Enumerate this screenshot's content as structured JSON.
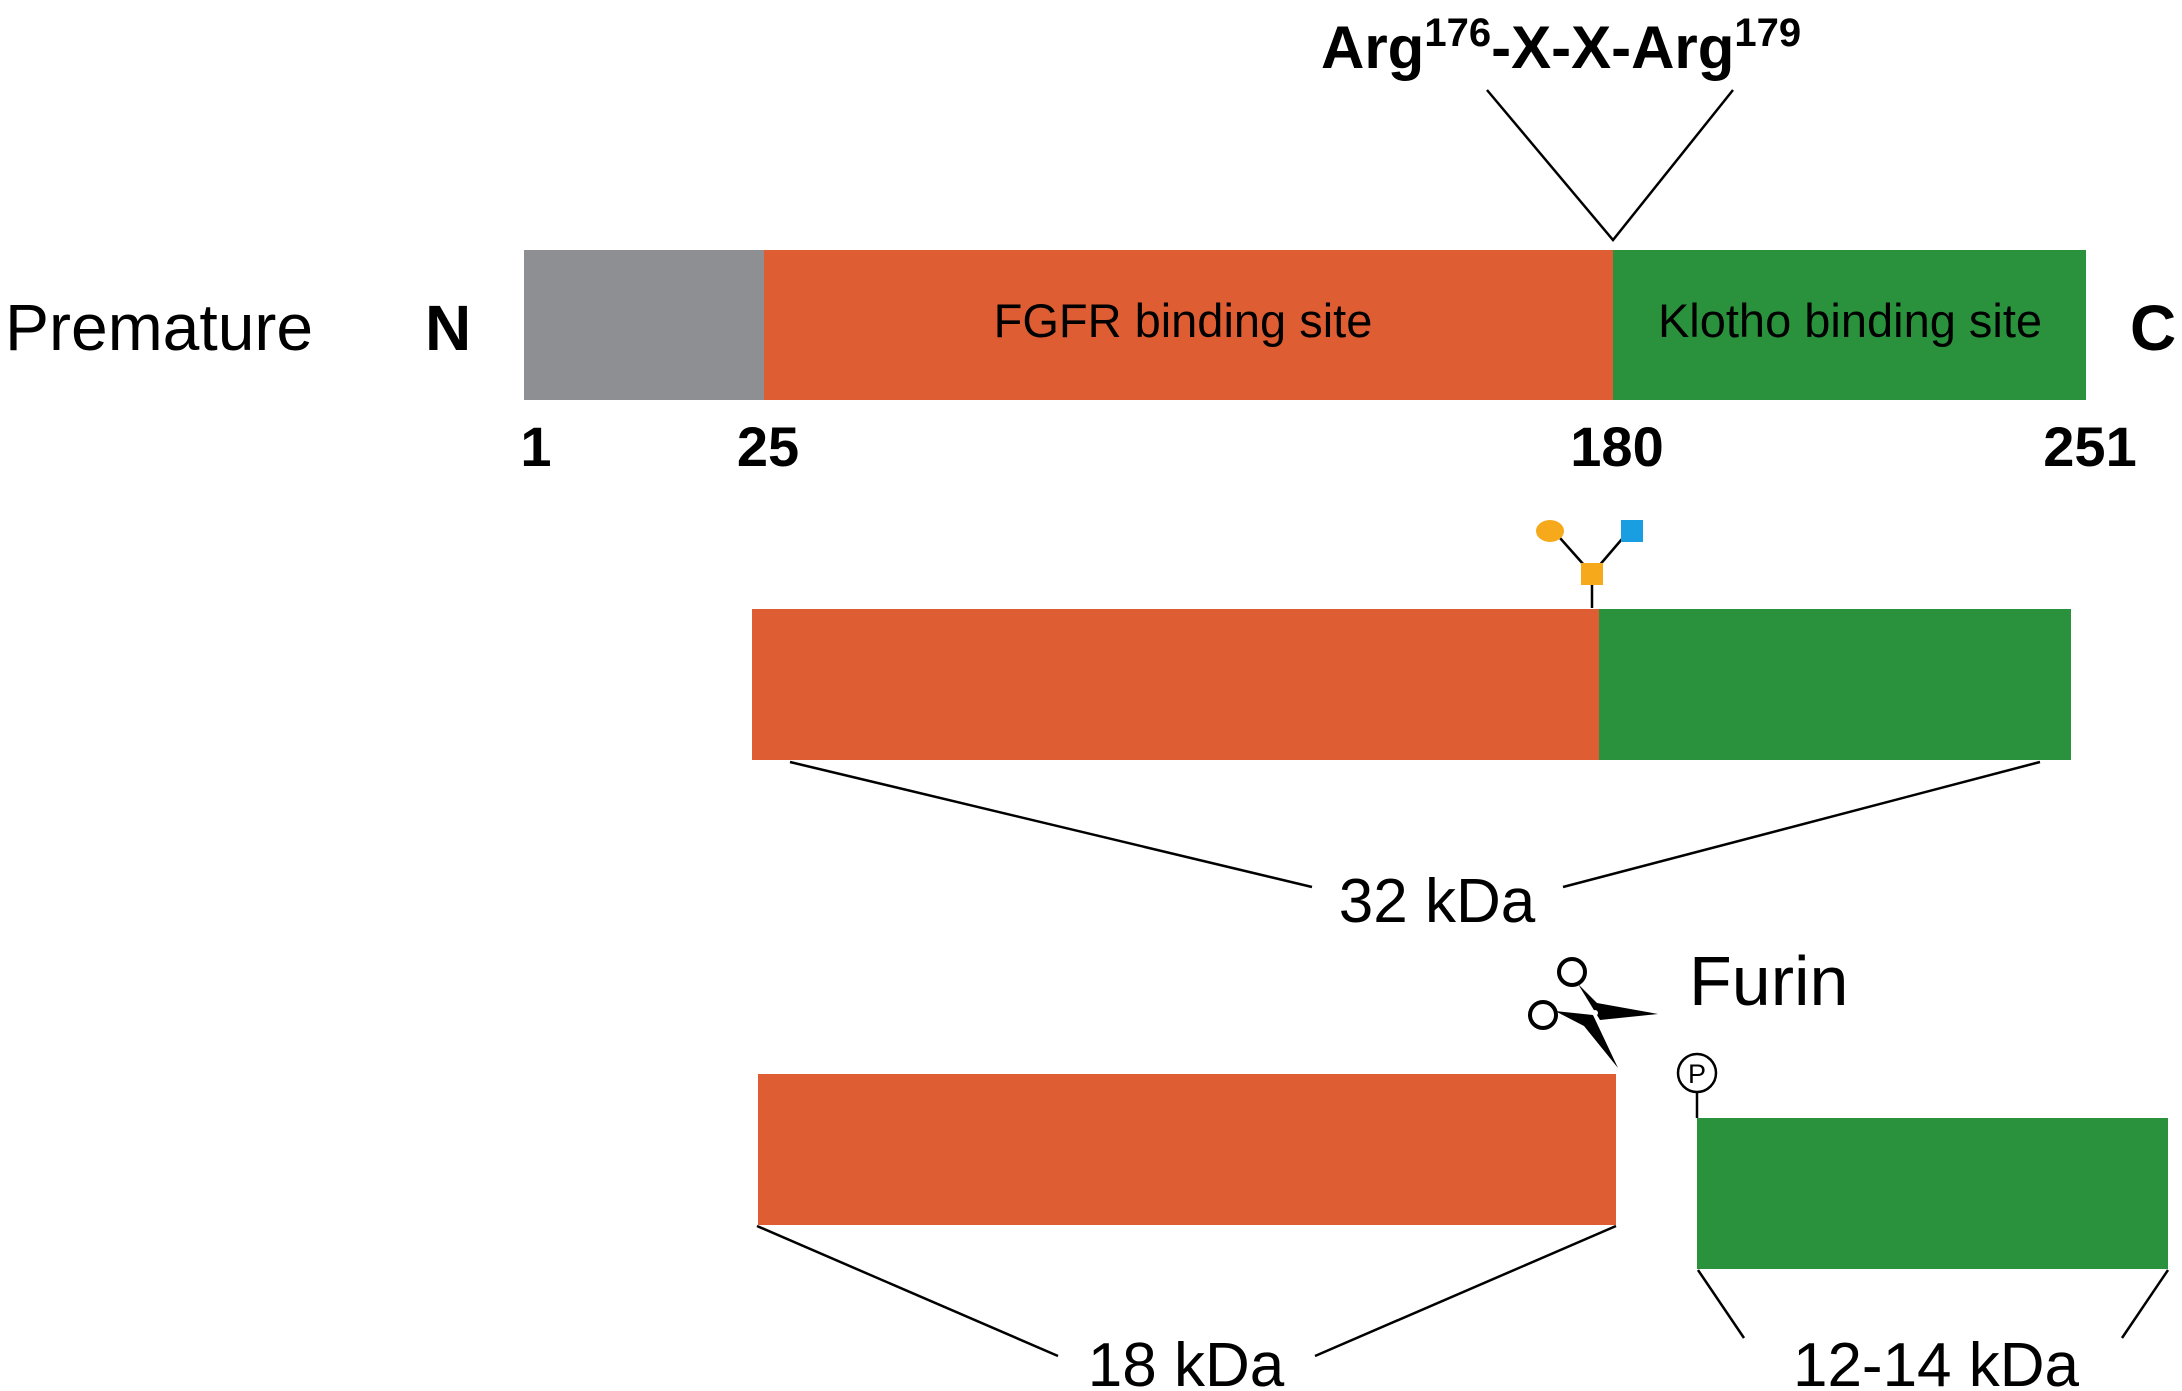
{
  "motif": {
    "main": "Arg",
    "sup1": "176",
    "mid": "-X-X-Arg",
    "sup2": "179"
  },
  "premature": {
    "label": "Premature",
    "n_terminus": "N",
    "c_terminus": "C",
    "domains": [
      {
        "name": "",
        "start": 1,
        "end": 25,
        "color": "#8e8f92"
      },
      {
        "name": "FGFR binding site",
        "start": 25,
        "end": 180,
        "color": "#de5d33"
      },
      {
        "name": "Klotho binding site",
        "start": 180,
        "end": 251,
        "color": "#2a923c"
      }
    ],
    "positions": [
      "1",
      "25",
      "180",
      "251"
    ]
  },
  "mature": {
    "size_label": "32 kDa",
    "glycan_colors": {
      "galactose": "#f7a91c",
      "galnac": "#f7a91c",
      "sialic": "#199ee2"
    }
  },
  "enzyme": {
    "name": "Furin"
  },
  "n_fragment": {
    "size_label": "18 kDa"
  },
  "c_fragment": {
    "size_label": "12-14 kDa",
    "phospho_label": "P"
  },
  "colors": {
    "fgfr": "#de5d33",
    "klotho": "#2a923c",
    "signal": "#8e8f92"
  }
}
